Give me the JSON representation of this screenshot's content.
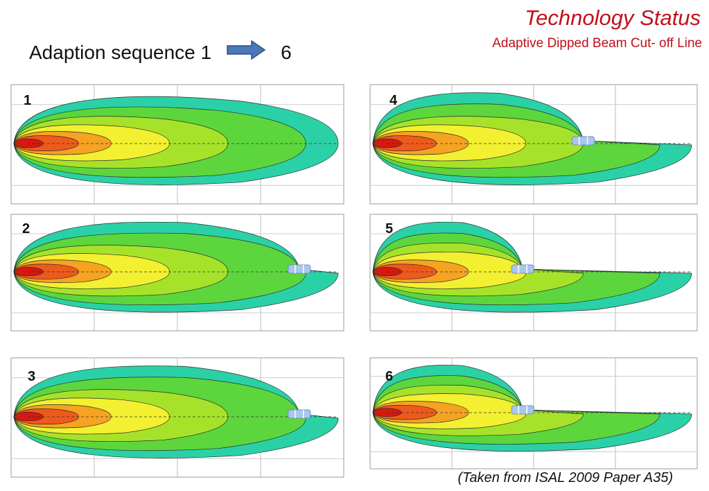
{
  "title": "Technology Status",
  "subtitle": "Adaptive Dipped Beam Cut- off Line",
  "heading": {
    "prefix": "Adaption sequence 1",
    "suffix": "6",
    "arrow_icon": "right-arrow-icon"
  },
  "panels": [
    {
      "label": "1",
      "car": false,
      "cutoff": "none"
    },
    {
      "label": "2",
      "car": true,
      "cutoff": "far"
    },
    {
      "label": "3",
      "car": true,
      "cutoff": "far"
    },
    {
      "label": "4",
      "car": true,
      "cutoff": "mid"
    },
    {
      "label": "5",
      "car": true,
      "cutoff": "near"
    },
    {
      "label": "6",
      "car": true,
      "cutoff": "near"
    }
  ],
  "caption": "(Taken from ISAL 2009 Paper A35)",
  "colors": {
    "title": "#c0101a",
    "arrow": "#4a78b8",
    "contours": [
      "#2bd1a6",
      "#5cd63c",
      "#a7e22a",
      "#f2f030",
      "#f6a321",
      "#ee5a1c",
      "#d8180e"
    ],
    "car": "#a9c6ee"
  }
}
